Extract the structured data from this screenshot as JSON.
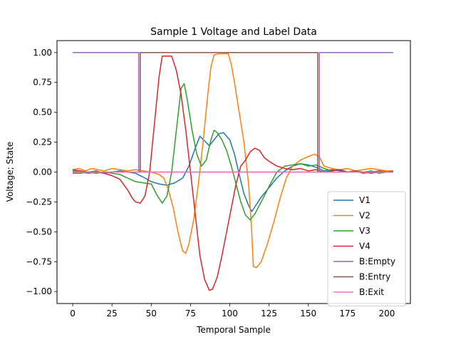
{
  "chart_data": {
    "type": "line",
    "title": "Sample 1 Voltage and Label Data",
    "xlabel": "Temporal Sample",
    "ylabel": "Voltage; State",
    "xlim": [
      -10,
      215
    ],
    "ylim": [
      -1.1,
      1.1
    ],
    "xticks": [
      0,
      25,
      50,
      75,
      100,
      125,
      150,
      175,
      200
    ],
    "yticks": [
      -1.0,
      -0.75,
      -0.5,
      -0.25,
      0.0,
      0.25,
      0.5,
      0.75,
      1.0
    ],
    "ytick_labels": [
      "−1.00",
      "−0.75",
      "−0.50",
      "−0.25",
      "0.00",
      "0.25",
      "0.50",
      "0.75",
      "1.00"
    ],
    "grid": false,
    "legend_position": "lower-right",
    "series": [
      {
        "name": "V1",
        "color": "#1f77b4",
        "points": [
          [
            0,
            0.01
          ],
          [
            5,
            0.0
          ],
          [
            10,
            -0.01
          ],
          [
            15,
            0.0
          ],
          [
            20,
            -0.01
          ],
          [
            25,
            0.0
          ],
          [
            30,
            0.01
          ],
          [
            35,
            0.0
          ],
          [
            40,
            -0.01
          ],
          [
            43,
            -0.03
          ],
          [
            46,
            -0.05
          ],
          [
            50,
            -0.08
          ],
          [
            55,
            -0.1
          ],
          [
            60,
            -0.11
          ],
          [
            65,
            -0.09
          ],
          [
            70,
            -0.05
          ],
          [
            74,
            0.05
          ],
          [
            78,
            0.2
          ],
          [
            81,
            0.3
          ],
          [
            84,
            0.26
          ],
          [
            87,
            0.22
          ],
          [
            90,
            0.27
          ],
          [
            93,
            0.32
          ],
          [
            96,
            0.33
          ],
          [
            100,
            0.27
          ],
          [
            103,
            0.15
          ],
          [
            106,
            -0.02
          ],
          [
            109,
            -0.18
          ],
          [
            112,
            -0.28
          ],
          [
            114,
            -0.33
          ],
          [
            117,
            -0.27
          ],
          [
            120,
            -0.21
          ],
          [
            125,
            -0.13
          ],
          [
            130,
            -0.05
          ],
          [
            135,
            0.01
          ],
          [
            140,
            0.05
          ],
          [
            145,
            0.07
          ],
          [
            150,
            0.06
          ],
          [
            155,
            0.04
          ],
          [
            160,
            0.01
          ],
          [
            165,
            0.02
          ],
          [
            170,
            0.01
          ],
          [
            175,
            0.0
          ],
          [
            180,
            0.01
          ],
          [
            185,
            0.0
          ],
          [
            190,
            -0.01
          ],
          [
            195,
            0.0
          ],
          [
            200,
            0.01
          ],
          [
            204,
            0.0
          ]
        ]
      },
      {
        "name": "V2",
        "color": "#ff7f0e",
        "points": [
          [
            0,
            0.02
          ],
          [
            4,
            0.03
          ],
          [
            8,
            0.01
          ],
          [
            12,
            0.03
          ],
          [
            16,
            0.02
          ],
          [
            20,
            0.01
          ],
          [
            25,
            0.03
          ],
          [
            30,
            0.02
          ],
          [
            35,
            0.01
          ],
          [
            40,
            0.02
          ],
          [
            45,
            0.01
          ],
          [
            50,
            0.0
          ],
          [
            55,
            -0.02
          ],
          [
            58,
            -0.05
          ],
          [
            61,
            -0.15
          ],
          [
            64,
            -0.3
          ],
          [
            67,
            -0.5
          ],
          [
            70,
            -0.66
          ],
          [
            72,
            -0.68
          ],
          [
            74,
            -0.6
          ],
          [
            77,
            -0.4
          ],
          [
            80,
            -0.1
          ],
          [
            83,
            0.25
          ],
          [
            86,
            0.65
          ],
          [
            88,
            0.88
          ],
          [
            90,
            0.98
          ],
          [
            93,
            0.99
          ],
          [
            96,
            0.99
          ],
          [
            99,
            0.99
          ],
          [
            101,
            0.9
          ],
          [
            103,
            0.75
          ],
          [
            106,
            0.5
          ],
          [
            109,
            0.25
          ],
          [
            112,
            -0.1
          ],
          [
            114,
            -0.5
          ],
          [
            115,
            -0.79
          ],
          [
            117,
            -0.8
          ],
          [
            120,
            -0.75
          ],
          [
            124,
            -0.6
          ],
          [
            128,
            -0.42
          ],
          [
            132,
            -0.22
          ],
          [
            136,
            -0.05
          ],
          [
            140,
            0.05
          ],
          [
            145,
            0.1
          ],
          [
            150,
            0.13
          ],
          [
            154,
            0.15
          ],
          [
            157,
            0.13
          ],
          [
            160,
            0.05
          ],
          [
            165,
            0.03
          ],
          [
            170,
            0.02
          ],
          [
            175,
            0.03
          ],
          [
            180,
            0.01
          ],
          [
            185,
            0.02
          ],
          [
            190,
            0.03
          ],
          [
            195,
            0.02
          ],
          [
            200,
            0.01
          ],
          [
            204,
            0.01
          ]
        ]
      },
      {
        "name": "V3",
        "color": "#2ca02c",
        "points": [
          [
            0,
            -0.01
          ],
          [
            5,
            -0.01
          ],
          [
            10,
            0.0
          ],
          [
            15,
            -0.01
          ],
          [
            20,
            0.0
          ],
          [
            25,
            -0.01
          ],
          [
            30,
            -0.02
          ],
          [
            35,
            -0.05
          ],
          [
            40,
            -0.08
          ],
          [
            45,
            -0.09
          ],
          [
            50,
            -0.1
          ],
          [
            54,
            -0.2
          ],
          [
            57,
            -0.26
          ],
          [
            60,
            -0.2
          ],
          [
            63,
            0.0
          ],
          [
            66,
            0.35
          ],
          [
            69,
            0.7
          ],
          [
            71,
            0.74
          ],
          [
            73,
            0.6
          ],
          [
            76,
            0.35
          ],
          [
            79,
            0.15
          ],
          [
            82,
            0.05
          ],
          [
            85,
            0.1
          ],
          [
            88,
            0.27
          ],
          [
            90,
            0.35
          ],
          [
            92,
            0.33
          ],
          [
            95,
            0.27
          ],
          [
            98,
            0.18
          ],
          [
            101,
            0.05
          ],
          [
            104,
            -0.1
          ],
          [
            107,
            -0.25
          ],
          [
            110,
            -0.36
          ],
          [
            113,
            -0.4
          ],
          [
            116,
            -0.35
          ],
          [
            120,
            -0.25
          ],
          [
            125,
            -0.12
          ],
          [
            130,
            0.0
          ],
          [
            135,
            0.05
          ],
          [
            140,
            0.06
          ],
          [
            145,
            0.07
          ],
          [
            150,
            0.05
          ],
          [
            155,
            0.06
          ],
          [
            160,
            0.03
          ],
          [
            165,
            0.01
          ],
          [
            170,
            0.02
          ],
          [
            175,
            0.0
          ],
          [
            180,
            0.01
          ],
          [
            185,
            0.0
          ],
          [
            190,
            0.01
          ],
          [
            195,
            -0.01
          ],
          [
            200,
            0.0
          ],
          [
            204,
            0.0
          ]
        ]
      },
      {
        "name": "V4",
        "color": "#d62728",
        "points": [
          [
            0,
            0.02
          ],
          [
            5,
            0.01
          ],
          [
            10,
            0.0
          ],
          [
            15,
            0.01
          ],
          [
            20,
            -0.01
          ],
          [
            25,
            -0.03
          ],
          [
            30,
            -0.06
          ],
          [
            35,
            -0.15
          ],
          [
            38,
            -0.22
          ],
          [
            40,
            -0.25
          ],
          [
            43,
            -0.26
          ],
          [
            46,
            -0.2
          ],
          [
            49,
            0.0
          ],
          [
            52,
            0.4
          ],
          [
            55,
            0.8
          ],
          [
            57,
            0.97
          ],
          [
            60,
            0.97
          ],
          [
            63,
            0.97
          ],
          [
            66,
            0.85
          ],
          [
            69,
            0.65
          ],
          [
            72,
            0.35
          ],
          [
            75,
            0.0
          ],
          [
            78,
            -0.35
          ],
          [
            81,
            -0.7
          ],
          [
            84,
            -0.9
          ],
          [
            87,
            -0.99
          ],
          [
            89,
            -0.98
          ],
          [
            92,
            -0.88
          ],
          [
            95,
            -0.7
          ],
          [
            98,
            -0.5
          ],
          [
            101,
            -0.3
          ],
          [
            104,
            -0.1
          ],
          [
            107,
            0.05
          ],
          [
            110,
            0.1
          ],
          [
            113,
            0.17
          ],
          [
            116,
            0.2
          ],
          [
            119,
            0.18
          ],
          [
            122,
            0.12
          ],
          [
            125,
            0.09
          ],
          [
            130,
            0.05
          ],
          [
            135,
            0.03
          ],
          [
            140,
            0.02
          ],
          [
            145,
            0.03
          ],
          [
            150,
            0.01
          ],
          [
            155,
            0.02
          ],
          [
            160,
            0.0
          ],
          [
            165,
            0.01
          ],
          [
            170,
            0.02
          ],
          [
            175,
            0.0
          ],
          [
            180,
            0.01
          ],
          [
            185,
            -0.01
          ],
          [
            190,
            0.0
          ],
          [
            195,
            0.01
          ],
          [
            200,
            0.0
          ],
          [
            204,
            0.01
          ]
        ]
      },
      {
        "name": "B:Empty",
        "color": "#9467bd",
        "points": [
          [
            0,
            1
          ],
          [
            42,
            1
          ],
          [
            42,
            0
          ],
          [
            157,
            0
          ],
          [
            157,
            1
          ],
          [
            204,
            1
          ]
        ]
      },
      {
        "name": "B:Entry",
        "color": "#8c564b",
        "points": [
          [
            0,
            0
          ],
          [
            43,
            0
          ],
          [
            43,
            1
          ],
          [
            156,
            1
          ],
          [
            156,
            0
          ],
          [
            204,
            0
          ]
        ]
      },
      {
        "name": "B:Exit",
        "color": "#e377c2",
        "points": [
          [
            0,
            0
          ],
          [
            204,
            0
          ]
        ]
      }
    ]
  }
}
